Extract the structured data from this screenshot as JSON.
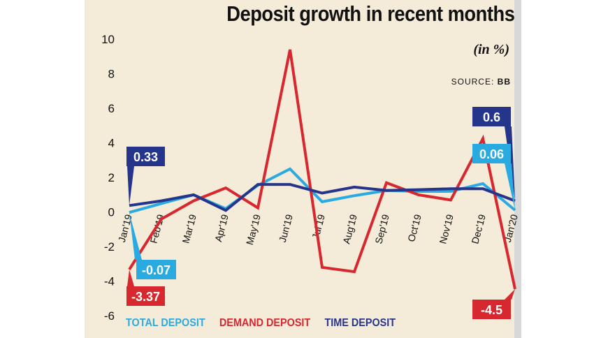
{
  "title": "Deposit growth in recent months",
  "unit": "(in %)",
  "source_label": "SOURCE:",
  "source_value": "BB",
  "colors": {
    "total": "#29abe2",
    "demand": "#d7282f",
    "time": "#26358c",
    "panel": "#f5ebd9"
  },
  "chart_data": {
    "type": "line",
    "title": "Deposit growth in recent months",
    "x": [
      "Jan'19",
      "Feb'19",
      "Mar'19",
      "Apr'19",
      "May'19",
      "Jun'19",
      "Jul'19",
      "Aug'19",
      "Sep'19",
      "Oct'19",
      "Nov'19",
      "Dec'19",
      "Jan'20"
    ],
    "ylim": [
      -6,
      10
    ],
    "yticks": [
      10,
      8,
      6,
      4,
      2,
      0,
      -2,
      -4,
      -6
    ],
    "grid": false,
    "legend_position": "bottom",
    "series": [
      {
        "name": "TOTAL DEPOSIT",
        "key": "total",
        "values": [
          -0.07,
          0.45,
          0.95,
          0.15,
          1.5,
          2.45,
          0.55,
          0.9,
          1.2,
          1.15,
          1.15,
          1.6,
          0.06
        ]
      },
      {
        "name": "DEMAND DEPOSIT",
        "key": "demand",
        "values": [
          -3.37,
          -0.45,
          0.6,
          1.35,
          0.2,
          9.35,
          -3.25,
          -3.5,
          1.65,
          0.95,
          0.65,
          4.2,
          -4.5
        ]
      },
      {
        "name": "TIME DEPOSIT",
        "key": "time",
        "values": [
          0.33,
          0.6,
          0.95,
          0.05,
          1.55,
          1.55,
          1.05,
          1.4,
          1.2,
          1.25,
          1.3,
          1.3,
          0.6
        ]
      }
    ],
    "callouts": [
      {
        "series": "time",
        "index": 0,
        "label": "0.33"
      },
      {
        "series": "total",
        "index": 0,
        "label": "-0.07"
      },
      {
        "series": "demand",
        "index": 0,
        "label": "-3.37"
      },
      {
        "series": "time",
        "index": 12,
        "label": "0.6"
      },
      {
        "series": "total",
        "index": 12,
        "label": "0.06"
      },
      {
        "series": "demand",
        "index": 12,
        "label": "-4.5"
      }
    ]
  }
}
